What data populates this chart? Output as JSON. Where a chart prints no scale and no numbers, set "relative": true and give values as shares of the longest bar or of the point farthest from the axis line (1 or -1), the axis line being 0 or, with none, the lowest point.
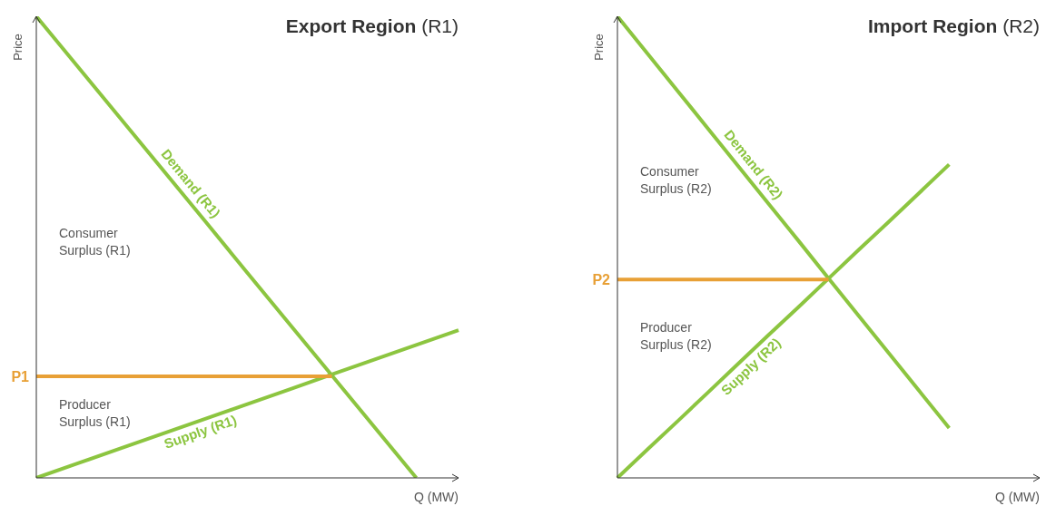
{
  "chart_data": [
    {
      "type": "line",
      "title": "Export Region (R1)",
      "xlabel": "Q (MW)",
      "ylabel": "Price",
      "relative": true,
      "categories": [
        null,
        null,
        null,
        null,
        null,
        null,
        null,
        null,
        null,
        null,
        null
      ],
      "series": [
        {
          "type": "line",
          "name": "Demand (R1)",
          "color": "#8cc540",
          "values": [
            1,
            0.889,
            0.778,
            0.667,
            0.556,
            0.444,
            0.333,
            0.222,
            0.111,
            0,
            null
          ]
        },
        {
          "type": "line",
          "name": "Supply (R1)",
          "color": "#8cc540",
          "values": [
            0,
            0.032,
            0.064,
            0.096,
            0.128,
            0.16,
            0.192,
            0.224,
            0.256,
            0.288,
            0.32
          ]
        },
        {
          "type": "line",
          "name": "P1",
          "color": "#e8a036",
          "values": [
            0.22,
            0.22,
            0.22,
            0.22,
            0.22,
            0.22,
            0.22,
            0.22,
            null,
            null,
            null
          ]
        }
      ],
      "annotations": [
        "Consumer Surplus (R1)",
        "Producer Surplus (R1)"
      ]
    },
    {
      "type": "line",
      "title": "Import Region (R2)",
      "xlabel": "Q (MW)",
      "ylabel": "Price",
      "relative": true,
      "categories": [
        null,
        null,
        null,
        null,
        null,
        null,
        null,
        null,
        null,
        null,
        null,
        null,
        null,
        null,
        null
      ],
      "series": [
        {
          "type": "line",
          "name": "Demand (R2)",
          "color": "#8cc540",
          "values": [
            1,
            0.919,
            0.838,
            0.757,
            0.676,
            0.595,
            0.514,
            0.432,
            0.351,
            0.27,
            0.189,
            0.108,
            null,
            null,
            null
          ]
        },
        {
          "type": "line",
          "name": "Supply (R2)",
          "color": "#8cc540",
          "values": [
            0,
            0.062,
            0.123,
            0.185,
            0.247,
            0.309,
            0.37,
            0.432,
            0.494,
            0.555,
            0.617,
            0.679,
            null,
            null,
            null
          ]
        },
        {
          "type": "line",
          "name": "P2",
          "color": "#e8a036",
          "values": [
            0.43,
            0.43,
            0.43,
            0.43,
            0.43,
            0.43,
            0.43,
            0.43,
            null,
            null,
            null,
            null,
            null,
            null,
            null
          ]
        }
      ],
      "annotations": [
        "Consumer Surplus (R2)",
        "Producer Surplus (R2)"
      ]
    }
  ]
}
